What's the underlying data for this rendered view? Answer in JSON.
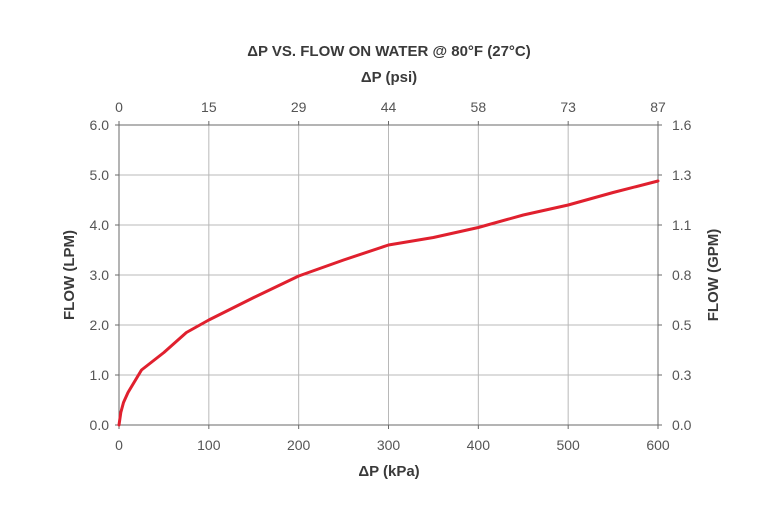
{
  "chart_data": {
    "type": "line",
    "title": "ΔP VS. FLOW ON WATER @ 80°F (27°C)",
    "xlabel": "ΔP (kPa)",
    "x2label": "ΔP (psi)",
    "ylabel": "FLOW (LPM)",
    "y2label": "FLOW (GPM)",
    "xlim": [
      0,
      600
    ],
    "ylim": [
      0,
      6
    ],
    "x_ticks": [
      0,
      100,
      200,
      300,
      400,
      500,
      600
    ],
    "x_tick_labels": [
      "0",
      "100",
      "200",
      "300",
      "400",
      "500",
      "600"
    ],
    "x2_tick_labels": [
      "0",
      "15",
      "29",
      "44",
      "58",
      "73",
      "87"
    ],
    "y_ticks": [
      0,
      1,
      2,
      3,
      4,
      5,
      6
    ],
    "y_tick_labels": [
      "0.0",
      "1.0",
      "2.0",
      "3.0",
      "4.0",
      "5.0",
      "6.0"
    ],
    "y2_tick_labels": [
      "0.0",
      "0.3",
      "0.5",
      "0.8",
      "1.1",
      "1.3",
      "1.6"
    ],
    "grid": true,
    "series": [
      {
        "color": "#e0202e",
        "x": [
          0,
          2,
          5,
          10,
          25,
          50,
          75,
          100,
          150,
          200,
          250,
          300,
          350,
          400,
          450,
          500,
          550,
          600
        ],
        "y": [
          0.0,
          0.25,
          0.45,
          0.65,
          1.1,
          1.45,
          1.85,
          2.1,
          2.55,
          2.98,
          3.3,
          3.6,
          3.75,
          3.95,
          4.2,
          4.4,
          4.65,
          4.88
        ]
      }
    ]
  }
}
